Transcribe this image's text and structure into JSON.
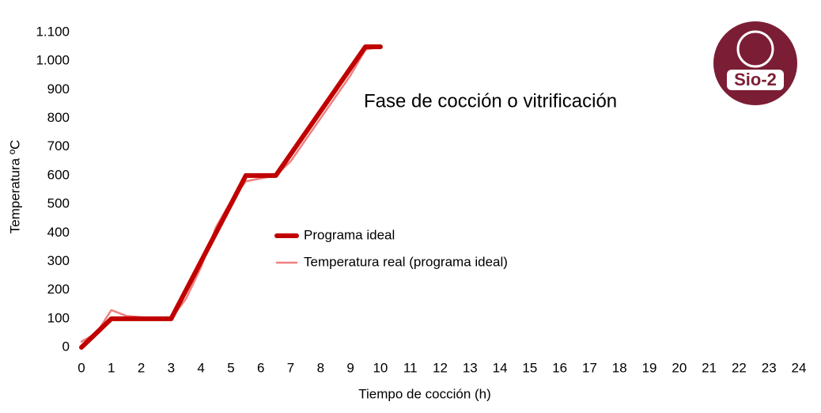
{
  "chart_data": {
    "type": "line",
    "title": "Fase de cocción o vitrificación",
    "x_label": "Tiempo de cocción (h)",
    "y_label": "Temperatura ºC",
    "logo_text": "Sio-2",
    "xlim": [
      0,
      24
    ],
    "xticks": [
      0,
      1,
      2,
      3,
      4,
      5,
      6,
      7,
      8,
      9,
      10,
      11,
      12,
      13,
      14,
      15,
      16,
      17,
      18,
      19,
      20,
      21,
      22,
      23,
      24
    ],
    "ylim": [
      0,
      1100
    ],
    "yticks": [
      0,
      100,
      200,
      300,
      400,
      500,
      600,
      700,
      800,
      900,
      {
        "value": 1000,
        "label": "1.000"
      },
      {
        "value": 1100,
        "label": "1.100"
      }
    ],
    "grid": false,
    "legend": "center",
    "series": [
      {
        "name": "Programa ideal",
        "color": "#c00000",
        "x": [
          0,
          1,
          3,
          5.5,
          6.5,
          9.5,
          10
        ],
        "values": [
          0,
          100,
          100,
          600,
          600,
          1050,
          1050
        ]
      },
      {
        "name": "Temperatura real (programa ideal)",
        "color": "#f08080",
        "x": [
          0,
          0.5,
          1,
          1.5,
          2,
          3,
          3.5,
          4,
          4.5,
          5,
          5.5,
          6,
          6.5,
          7,
          8,
          9,
          9.5,
          10
        ],
        "values": [
          20,
          50,
          130,
          110,
          105,
          100,
          170,
          280,
          420,
          510,
          580,
          590,
          600,
          650,
          800,
          950,
          1040,
          1050
        ]
      }
    ]
  }
}
